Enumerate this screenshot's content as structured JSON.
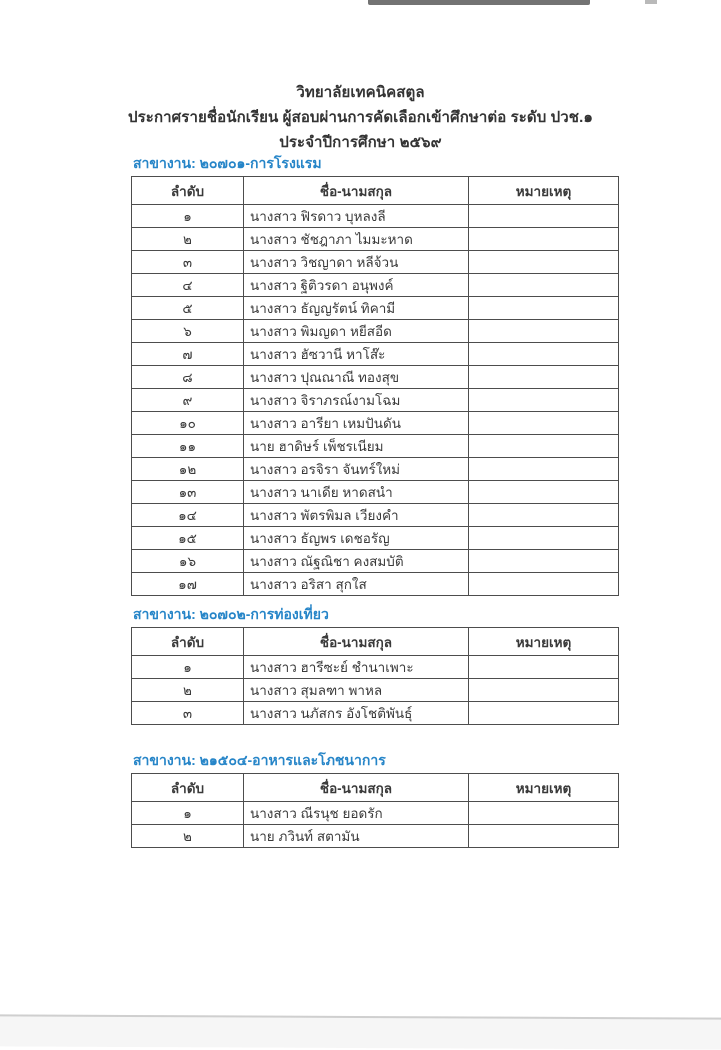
{
  "colors": {
    "accent_section_title": "#2685c8",
    "body_text": "#3a3a3a",
    "table_border": "#4d4d4d"
  },
  "header": {
    "line1": "วิทยาลัยเทคนิคสตูล",
    "line2": "ประกาศรายชื่อนักเรียน ผู้สอบผ่านการคัดเลือกเข้าศึกษาต่อ ระดับ ปวช.๑",
    "line3": "ประจำปีการศึกษา ๒๕๖๙"
  },
  "table_headers": {
    "no": "ลำดับ",
    "name": "ชื่อ-นามสกุล",
    "remark": "หมายเหตุ"
  },
  "sections": [
    {
      "title": "สาขางาน: ๒๐๗๐๑-การโรงแรม",
      "rows": [
        {
          "no": "๑",
          "name": "นางสาว ฟิรดาว บุหลงลี",
          "remark": ""
        },
        {
          "no": "๒",
          "name": "นางสาว ชัชฎาภา ไมมะหาด",
          "remark": ""
        },
        {
          "no": "๓",
          "name": "นางสาว วิชญาดา หลีจ้วน",
          "remark": ""
        },
        {
          "no": "๔",
          "name": "นางสาว ฐิติวรดา อนุพงค์",
          "remark": ""
        },
        {
          "no": "๕",
          "name": "นางสาว ธัญญรัตน์ ทิคามี",
          "remark": ""
        },
        {
          "no": "๖",
          "name": "นางสาว พิมญดา หยีสอีด",
          "remark": ""
        },
        {
          "no": "๗",
          "name": "นางสาว ฮัซวานี หาโส๊ะ",
          "remark": ""
        },
        {
          "no": "๘",
          "name": "นางสาว ปุณณาณี ทองสุข",
          "remark": ""
        },
        {
          "no": "๙",
          "name": "นางสาว จิราภรณ์งามโฉม",
          "remark": ""
        },
        {
          "no": "๑๐",
          "name": "นางสาว อารียา เหมปันดัน",
          "remark": ""
        },
        {
          "no": "๑๑",
          "name": "นาย ฮาดิษร์ เพ็ชรเนียม",
          "remark": ""
        },
        {
          "no": "๑๒",
          "name": "นางสาว อรจิรา จันทร์ใหม่",
          "remark": ""
        },
        {
          "no": "๑๓",
          "name": "นางสาว นาเดีย หาดสนำ",
          "remark": ""
        },
        {
          "no": "๑๔",
          "name": "นางสาว พัตรพิมล เวียงคำ",
          "remark": ""
        },
        {
          "no": "๑๕",
          "name": "นางสาว ธัญพร เดชอรัญ",
          "remark": ""
        },
        {
          "no": "๑๖",
          "name": "นางสาว ณัฐณิชา คงสมบัติ",
          "remark": ""
        },
        {
          "no": "๑๗",
          "name": "นางสาว อริสา สุกใส",
          "remark": ""
        }
      ]
    },
    {
      "title": "สาขางาน: ๒๐๗๐๒-การท่องเที่ยว",
      "rows": [
        {
          "no": "๑",
          "name": "นางสาว ฮารีซะย์ ชำนาเพาะ",
          "remark": ""
        },
        {
          "no": "๒",
          "name": "นางสาว สุมลฑา พาหล",
          "remark": ""
        },
        {
          "no": "๓",
          "name": "นางสาว นภัสกร อังโชติพันธุ์",
          "remark": ""
        }
      ]
    },
    {
      "title": "สาขางาน: ๒๑๕๐๔-อาหารและโภชนาการ",
      "rows": [
        {
          "no": "๑",
          "name": "นางสาว ณีรนุช ยอดรัก",
          "remark": ""
        },
        {
          "no": "๒",
          "name": "นาย ภวินท์ สตามัน",
          "remark": ""
        }
      ]
    }
  ]
}
